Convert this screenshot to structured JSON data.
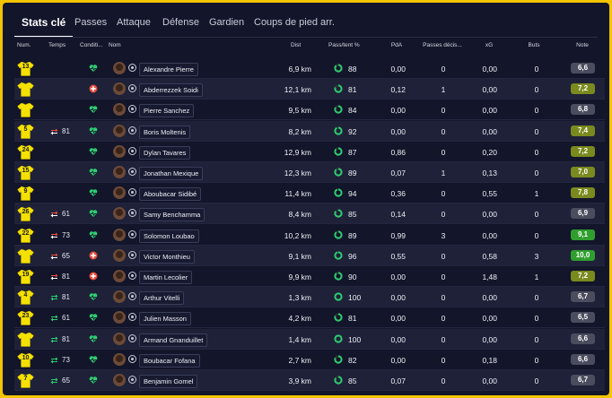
{
  "tabs": [
    {
      "label": "Stats clé",
      "active": true
    },
    {
      "label": "Passes",
      "active": false
    },
    {
      "label": "Attaque",
      "active": false
    },
    {
      "label": "Défense",
      "active": false
    },
    {
      "label": "Gardien",
      "active": false
    },
    {
      "label": "Coups de pied arr.",
      "active": false
    }
  ],
  "columns": {
    "num": "Num.",
    "temps": "Temps",
    "condition": "Conditi...",
    "nom": "Nom",
    "dist": "Dist",
    "passes": "Pass/tent %",
    "pda": "PdA",
    "passes_decisives": "Passes décis...",
    "xg": "xG",
    "buts": "Buts",
    "note": "Note"
  },
  "colors": {
    "shirt": "#f5e100",
    "cond_good": "#2ecc71",
    "cond_bad": "#e74c3c",
    "sub_in": "#2ecc71",
    "sub_out": "#e74c3c",
    "note_gray": "#4a4d5e",
    "note_olive": "#7a8a1f",
    "note_green": "#2f9e2f"
  },
  "players": [
    {
      "num": "13",
      "sub": "",
      "minute": "",
      "cond": "good",
      "name": "Alexandre Pierre",
      "dist": "6,9 km",
      "pass_pct": "88",
      "pda": "0,00",
      "pd": "0",
      "xg": "0,00",
      "buts": "0",
      "note": "6,6",
      "note_color": "gray"
    },
    {
      "num": "",
      "sub": "",
      "minute": "",
      "cond": "bad",
      "name": "Abderrezzek Soidi",
      "dist": "12,1 km",
      "pass_pct": "81",
      "pda": "0,12",
      "pd": "1",
      "xg": "0,00",
      "buts": "0",
      "note": "7,2",
      "note_color": "olive"
    },
    {
      "num": "",
      "sub": "",
      "minute": "",
      "cond": "good",
      "name": "Pierre Sanchez",
      "dist": "9,5 km",
      "pass_pct": "84",
      "pda": "0,00",
      "pd": "0",
      "xg": "0,00",
      "buts": "0",
      "note": "6,8",
      "note_color": "gray"
    },
    {
      "num": "5",
      "sub": "out",
      "minute": "81",
      "cond": "good",
      "name": "Boris Moltenis",
      "dist": "8,2 km",
      "pass_pct": "92",
      "pda": "0,00",
      "pd": "0",
      "xg": "0,00",
      "buts": "0",
      "note": "7,4",
      "note_color": "olive"
    },
    {
      "num": "24",
      "sub": "",
      "minute": "",
      "cond": "good",
      "name": "Dylan Tavares",
      "dist": "12,9 km",
      "pass_pct": "87",
      "pda": "0,86",
      "pd": "0",
      "xg": "0,20",
      "buts": "0",
      "note": "7,2",
      "note_color": "olive"
    },
    {
      "num": "15",
      "sub": "",
      "minute": "",
      "cond": "good",
      "name": "Jonathan Mexique",
      "dist": "12,3 km",
      "pass_pct": "89",
      "pda": "0,07",
      "pd": "1",
      "xg": "0,13",
      "buts": "0",
      "note": "7,0",
      "note_color": "olive"
    },
    {
      "num": "9",
      "sub": "",
      "minute": "",
      "cond": "good",
      "name": "Aboubacar Sidibé",
      "dist": "11,4 km",
      "pass_pct": "94",
      "pda": "0,36",
      "pd": "0",
      "xg": "0,55",
      "buts": "1",
      "note": "7,8",
      "note_color": "olive"
    },
    {
      "num": "26",
      "sub": "out",
      "minute": "61",
      "cond": "good",
      "name": "Samy Benchamma",
      "dist": "8,4 km",
      "pass_pct": "85",
      "pda": "0,14",
      "pd": "0",
      "xg": "0,00",
      "buts": "0",
      "note": "6,9",
      "note_color": "gray"
    },
    {
      "num": "22",
      "sub": "out",
      "minute": "73",
      "cond": "good",
      "name": "Solomon Loubao",
      "dist": "10,2 km",
      "pass_pct": "89",
      "pda": "0,99",
      "pd": "3",
      "xg": "0,00",
      "buts": "0",
      "note": "9,1",
      "note_color": "green"
    },
    {
      "num": "",
      "sub": "out",
      "minute": "65",
      "cond": "bad",
      "name": "Victor Monthieu",
      "dist": "9,1 km",
      "pass_pct": "96",
      "pda": "0,55",
      "pd": "0",
      "xg": "0,58",
      "buts": "3",
      "note": "10,0",
      "note_color": "green"
    },
    {
      "num": "19",
      "sub": "out",
      "minute": "81",
      "cond": "bad",
      "name": "Martin Lecolier",
      "dist": "9,9 km",
      "pass_pct": "90",
      "pda": "0,00",
      "pd": "0",
      "xg": "1,48",
      "buts": "1",
      "note": "7,2",
      "note_color": "olive"
    },
    {
      "num": "4",
      "sub": "in",
      "minute": "81",
      "cond": "good",
      "name": "Arthur Vitelli",
      "dist": "1,3 km",
      "pass_pct": "100",
      "pda": "0,00",
      "pd": "0",
      "xg": "0,00",
      "buts": "0",
      "note": "6,7",
      "note_color": "gray"
    },
    {
      "num": "23",
      "sub": "in",
      "minute": "61",
      "cond": "good",
      "name": "Julien Masson",
      "dist": "4,2 km",
      "pass_pct": "81",
      "pda": "0,00",
      "pd": "0",
      "xg": "0,00",
      "buts": "0",
      "note": "6,5",
      "note_color": "gray"
    },
    {
      "num": "",
      "sub": "in",
      "minute": "81",
      "cond": "good",
      "name": "Armand Gnanduillet",
      "dist": "1,4 km",
      "pass_pct": "100",
      "pda": "0,00",
      "pd": "0",
      "xg": "0,00",
      "buts": "0",
      "note": "6,6",
      "note_color": "gray"
    },
    {
      "num": "10",
      "sub": "in",
      "minute": "73",
      "cond": "good",
      "name": "Boubacar Fofana",
      "dist": "2,7 km",
      "pass_pct": "82",
      "pda": "0,00",
      "pd": "0",
      "xg": "0,18",
      "buts": "0",
      "note": "6,6",
      "note_color": "gray"
    },
    {
      "num": "7",
      "sub": "in",
      "minute": "65",
      "cond": "good",
      "name": "Benjamin Gomel",
      "dist": "3,9 km",
      "pass_pct": "85",
      "pda": "0,07",
      "pd": "0",
      "xg": "0,00",
      "buts": "0",
      "note": "6,7",
      "note_color": "gray"
    }
  ]
}
